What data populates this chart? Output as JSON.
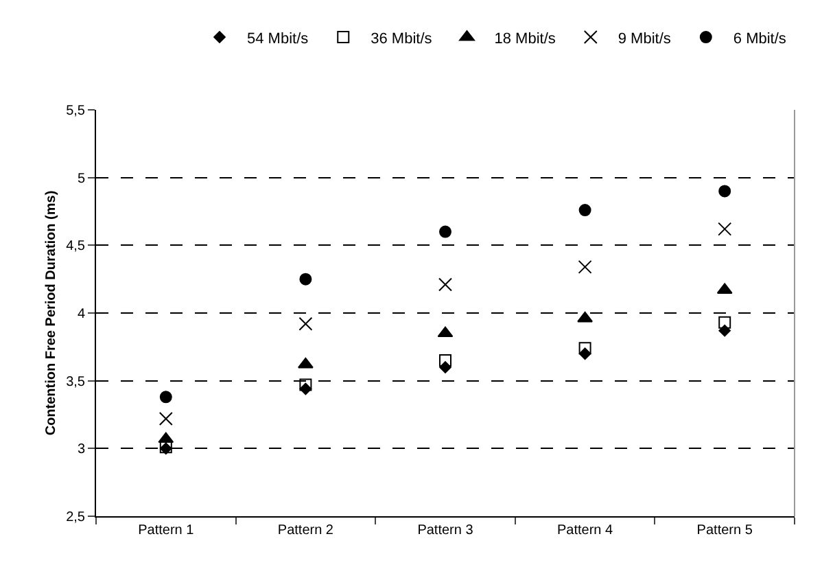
{
  "chart_data": {
    "type": "scatter",
    "ylabel": "Contention Free Period Duration (ms)",
    "categories": [
      "Pattern 1",
      "Pattern 2",
      "Pattern 3",
      "Pattern 4",
      "Pattern 5"
    ],
    "series": [
      {
        "name": "54 Mbit/s",
        "color": "#000000",
        "marker": "diamond",
        "values": [
          3.0,
          3.44,
          3.6,
          3.7,
          3.87
        ]
      },
      {
        "name": "36 Mbit/s",
        "color": "#000000",
        "marker": "square-open",
        "values": [
          3.01,
          3.47,
          3.65,
          3.74,
          3.93
        ]
      },
      {
        "name": "18 Mbit/s",
        "color": "#000000",
        "marker": "triangle",
        "values": [
          3.07,
          3.62,
          3.85,
          3.96,
          4.17
        ]
      },
      {
        "name": "9 Mbit/s",
        "color": "#000000",
        "marker": "cross",
        "values": [
          3.22,
          3.92,
          4.21,
          4.34,
          4.62
        ]
      },
      {
        "name": "6 Mbit/s",
        "color": "#000000",
        "marker": "circle",
        "values": [
          3.38,
          4.25,
          4.6,
          4.76,
          4.9
        ]
      }
    ],
    "ylim": [
      2.5,
      5.5
    ],
    "yticks": [
      {
        "value": 2.5,
        "label": "2,5"
      },
      {
        "value": 3,
        "label": "3"
      },
      {
        "value": 3.5,
        "label": "3,5"
      },
      {
        "value": 4,
        "label": "4"
      },
      {
        "value": 4.5,
        "label": "4,5"
      },
      {
        "value": 5,
        "label": "5"
      },
      {
        "value": 5.5,
        "label": "5,5"
      }
    ],
    "grid": "y",
    "legend": "top right",
    "line_style": "dashed"
  }
}
